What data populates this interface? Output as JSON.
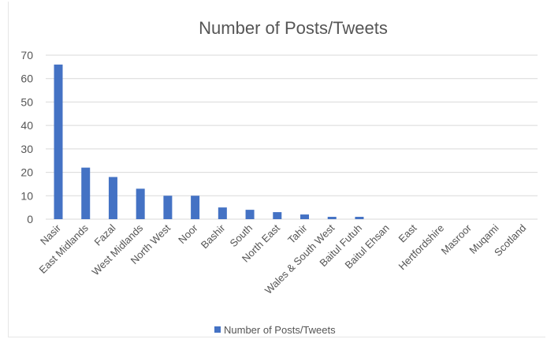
{
  "chart_data": {
    "type": "bar",
    "title": "Number of Posts/Tweets",
    "xlabel": "",
    "ylabel": "",
    "ylim": [
      0,
      70
    ],
    "yticks": [
      0,
      10,
      20,
      30,
      40,
      50,
      60,
      70
    ],
    "grid": true,
    "legend_position": "bottom",
    "categories": [
      "Nasir",
      "East Midlands",
      "Fazal",
      "West Midlands",
      "North West",
      "Noor",
      "Bashir",
      "South",
      "North East",
      "Tahir",
      "Wales & South West",
      "Baitul Futuh",
      "Baitul Ehsan",
      "East",
      "Hertfordshire",
      "Masroor",
      "Muqami",
      "Scotland"
    ],
    "series": [
      {
        "name": "Number of Posts/Tweets",
        "color": "#4472c4",
        "values": [
          66,
          22,
          18,
          13,
          10,
          10,
          5,
          4,
          3,
          2,
          1,
          1,
          0,
          0,
          0,
          0,
          0,
          0
        ]
      }
    ]
  }
}
